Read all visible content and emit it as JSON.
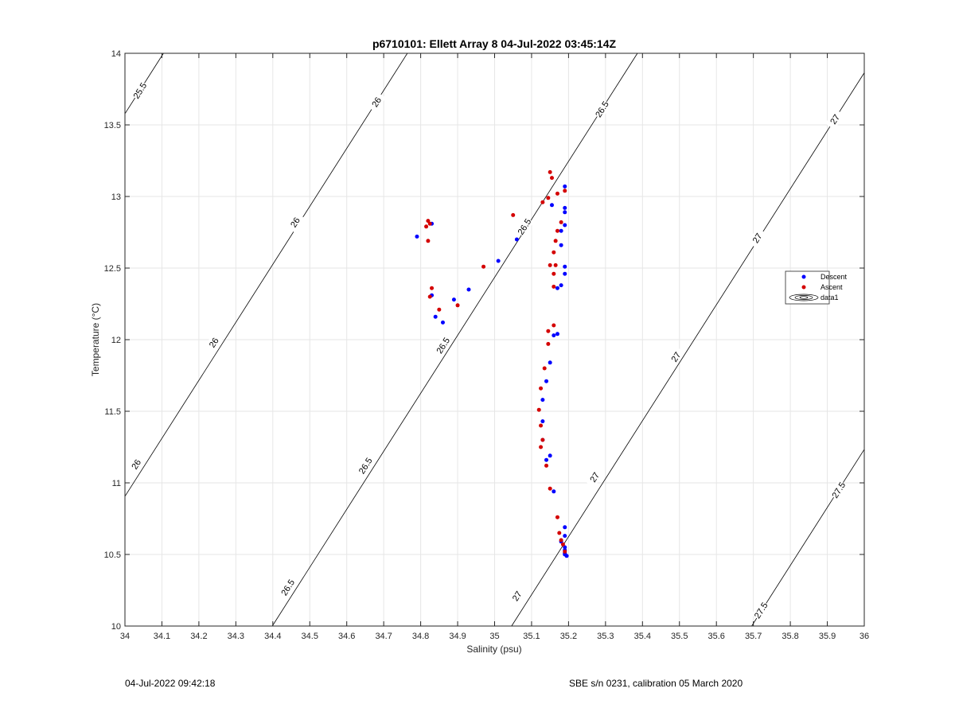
{
  "chart_data": {
    "type": "scatter",
    "title": "p6710101: Ellett Array 8 04-Jul-2022 03:45:14Z",
    "xlabel": "Salinity (psu)",
    "ylabel": "Temperature (°C)",
    "xlim": [
      34,
      36
    ],
    "ylim": [
      10,
      14
    ],
    "xticks": [
      "34",
      "34.1",
      "34.2",
      "34.3",
      "34.4",
      "34.5",
      "34.6",
      "34.7",
      "34.8",
      "34.9",
      "35",
      "35.1",
      "35.2",
      "35.3",
      "35.4",
      "35.5",
      "35.6",
      "35.7",
      "35.8",
      "35.9",
      "36"
    ],
    "yticks": [
      "10",
      "10.5",
      "11",
      "11.5",
      "12",
      "12.5",
      "13",
      "13.5",
      "14"
    ],
    "grid": true,
    "legend_position": "right",
    "legend": [
      "Descent",
      "Ascent",
      "data1"
    ],
    "colors": {
      "descent": "#0000ff",
      "ascent": "#d40000",
      "contour": "#000000"
    },
    "contour_labels": [
      {
        "text": "25.5",
        "s": 34.04,
        "t": 13.74
      },
      {
        "text": "26",
        "s": 34.68,
        "t": 13.66
      },
      {
        "text": "26",
        "s": 34.46,
        "t": 12.82
      },
      {
        "text": "26",
        "s": 34.24,
        "t": 11.98
      },
      {
        "text": "26",
        "s": 34.03,
        "t": 11.13
      },
      {
        "text": "26.5",
        "s": 35.29,
        "t": 13.61
      },
      {
        "text": "26.5",
        "s": 35.08,
        "t": 12.79
      },
      {
        "text": "26.5",
        "s": 34.86,
        "t": 11.96
      },
      {
        "text": "26.5",
        "s": 34.65,
        "t": 11.12
      },
      {
        "text": "26.5",
        "s": 34.44,
        "t": 10.27
      },
      {
        "text": "27",
        "s": 35.92,
        "t": 13.54
      },
      {
        "text": "27",
        "s": 35.71,
        "t": 12.71
      },
      {
        "text": "27",
        "s": 35.49,
        "t": 11.88
      },
      {
        "text": "27",
        "s": 35.27,
        "t": 11.04
      },
      {
        "text": "27",
        "s": 35.06,
        "t": 10.21
      },
      {
        "text": "27.5",
        "s": 35.93,
        "t": 10.95
      },
      {
        "text": "27.5",
        "s": 35.72,
        "t": 10.11
      }
    ],
    "series": [
      {
        "name": "Descent",
        "points": [
          [
            35.19,
            13.07
          ],
          [
            35.19,
            12.92
          ],
          [
            35.19,
            12.89
          ],
          [
            35.19,
            12.8
          ],
          [
            35.18,
            12.76
          ],
          [
            35.18,
            12.66
          ],
          [
            35.19,
            12.51
          ],
          [
            35.19,
            12.46
          ],
          [
            35.18,
            12.38
          ],
          [
            35.17,
            12.36
          ],
          [
            35.155,
            12.94
          ],
          [
            34.79,
            12.72
          ],
          [
            34.83,
            12.81
          ],
          [
            35.06,
            12.7
          ],
          [
            35.01,
            12.55
          ],
          [
            34.93,
            12.35
          ],
          [
            34.89,
            12.28
          ],
          [
            34.83,
            12.31
          ],
          [
            34.84,
            12.16
          ],
          [
            34.86,
            12.12
          ],
          [
            35.17,
            12.04
          ],
          [
            35.16,
            12.03
          ],
          [
            35.15,
            11.84
          ],
          [
            35.14,
            11.71
          ],
          [
            35.13,
            11.58
          ],
          [
            35.13,
            11.43
          ],
          [
            35.13,
            11.3
          ],
          [
            35.15,
            11.19
          ],
          [
            35.14,
            11.16
          ],
          [
            35.16,
            10.94
          ],
          [
            35.19,
            10.69
          ],
          [
            35.19,
            10.63
          ],
          [
            35.18,
            10.59
          ],
          [
            35.19,
            10.55
          ],
          [
            35.19,
            10.53
          ],
          [
            35.19,
            10.51
          ],
          [
            35.19,
            10.5
          ],
          [
            35.195,
            10.49
          ]
        ]
      },
      {
        "name": "Ascent",
        "points": [
          [
            35.15,
            13.17
          ],
          [
            35.155,
            13.13
          ],
          [
            35.19,
            13.04
          ],
          [
            35.17,
            13.02
          ],
          [
            35.145,
            12.99
          ],
          [
            35.13,
            12.96
          ],
          [
            35.05,
            12.87
          ],
          [
            34.82,
            12.83
          ],
          [
            34.825,
            12.81
          ],
          [
            34.815,
            12.79
          ],
          [
            34.82,
            12.69
          ],
          [
            35.18,
            12.82
          ],
          [
            35.17,
            12.76
          ],
          [
            35.165,
            12.69
          ],
          [
            35.16,
            12.61
          ],
          [
            35.15,
            12.52
          ],
          [
            35.165,
            12.52
          ],
          [
            35.16,
            12.46
          ],
          [
            35.16,
            12.37
          ],
          [
            34.97,
            12.51
          ],
          [
            34.83,
            12.36
          ],
          [
            34.825,
            12.3
          ],
          [
            34.9,
            12.24
          ],
          [
            34.85,
            12.21
          ],
          [
            35.16,
            12.1
          ],
          [
            35.145,
            12.06
          ],
          [
            35.145,
            11.97
          ],
          [
            35.135,
            11.8
          ],
          [
            35.125,
            11.66
          ],
          [
            35.12,
            11.51
          ],
          [
            35.125,
            11.4
          ],
          [
            35.13,
            11.3
          ],
          [
            35.125,
            11.25
          ],
          [
            35.14,
            11.12
          ],
          [
            35.15,
            10.96
          ],
          [
            35.17,
            10.76
          ],
          [
            35.175,
            10.65
          ],
          [
            35.18,
            10.6
          ],
          [
            35.185,
            10.57
          ],
          [
            35.19,
            10.52
          ]
        ]
      }
    ]
  },
  "footer": {
    "left": "04-Jul-2022 09:42:18",
    "right": "SBE s/n 0231, calibration 05 March 2020"
  }
}
